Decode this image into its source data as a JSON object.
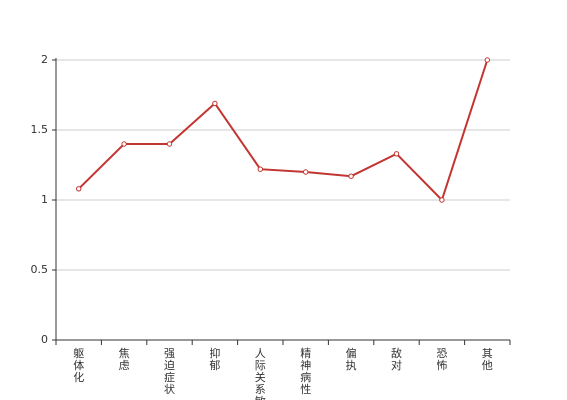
{
  "chart_data": {
    "type": "line",
    "categories": [
      "躯体化",
      "焦虑",
      "强迫症状",
      "抑郁",
      "人际关系敏感",
      "精神病性",
      "偏执",
      "敌对",
      "恐怖",
      "其他"
    ],
    "series": [
      {
        "color": "#c23531",
        "values": [
          1.08,
          1.4,
          1.4,
          1.69,
          1.22,
          1.2,
          1.17,
          1.33,
          1.0,
          2.0
        ]
      }
    ],
    "ylim": [
      0,
      2
    ],
    "yticks": [
      0,
      0.5,
      1,
      1.5,
      2
    ],
    "grid": true
  }
}
